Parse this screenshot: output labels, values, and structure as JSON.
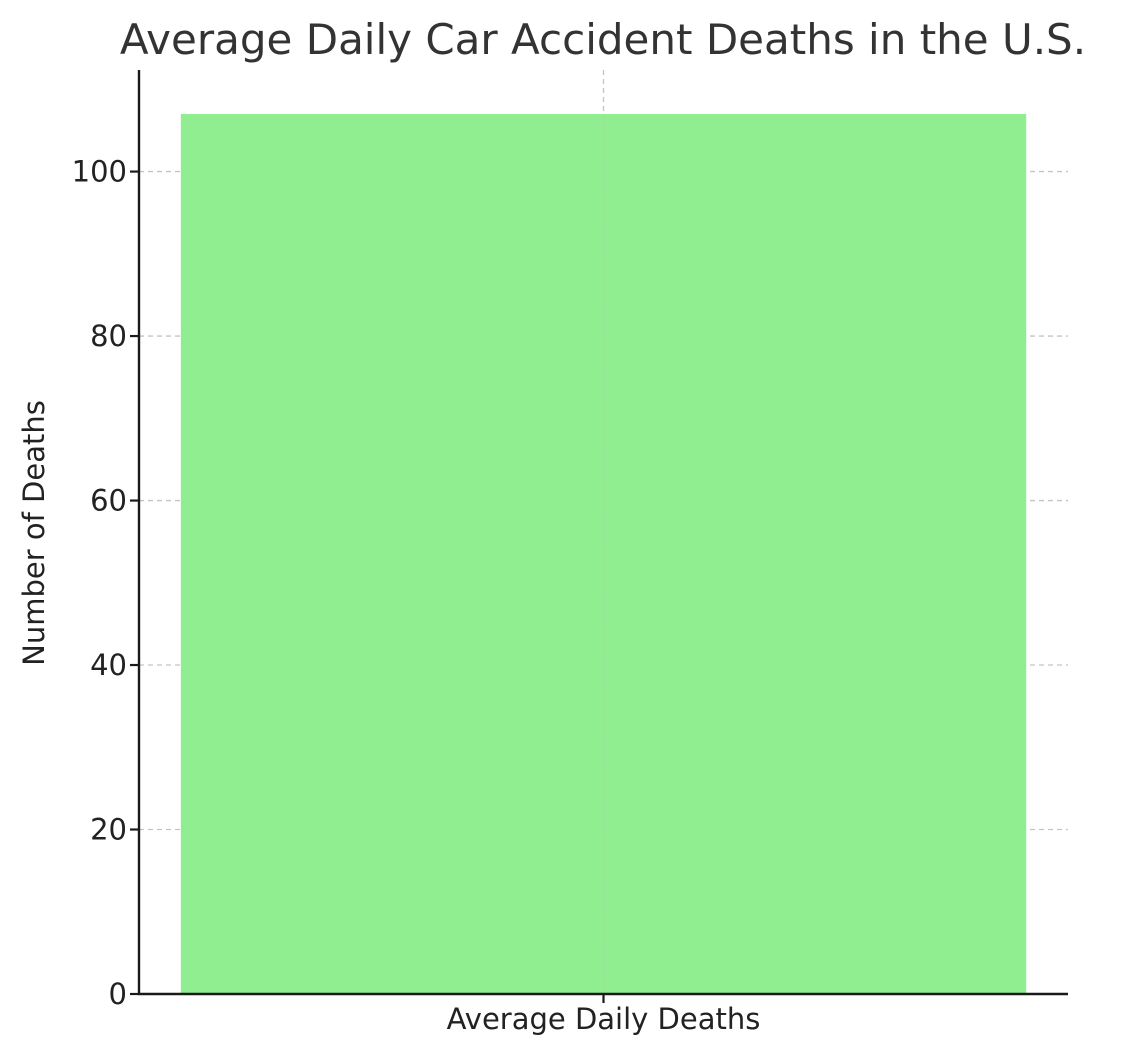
{
  "chart_data": {
    "type": "bar",
    "title": "Average Daily Car Accident Deaths in the U.S.",
    "xlabel": "",
    "ylabel": "Number of Deaths",
    "categories": [
      "Average Daily Deaths"
    ],
    "values": [
      107
    ],
    "ylim": [
      0,
      112.35
    ],
    "yticks": [
      0,
      20,
      40,
      60,
      80,
      100
    ],
    "grid": true,
    "bar_color": "#90ee90",
    "legend": "none"
  }
}
